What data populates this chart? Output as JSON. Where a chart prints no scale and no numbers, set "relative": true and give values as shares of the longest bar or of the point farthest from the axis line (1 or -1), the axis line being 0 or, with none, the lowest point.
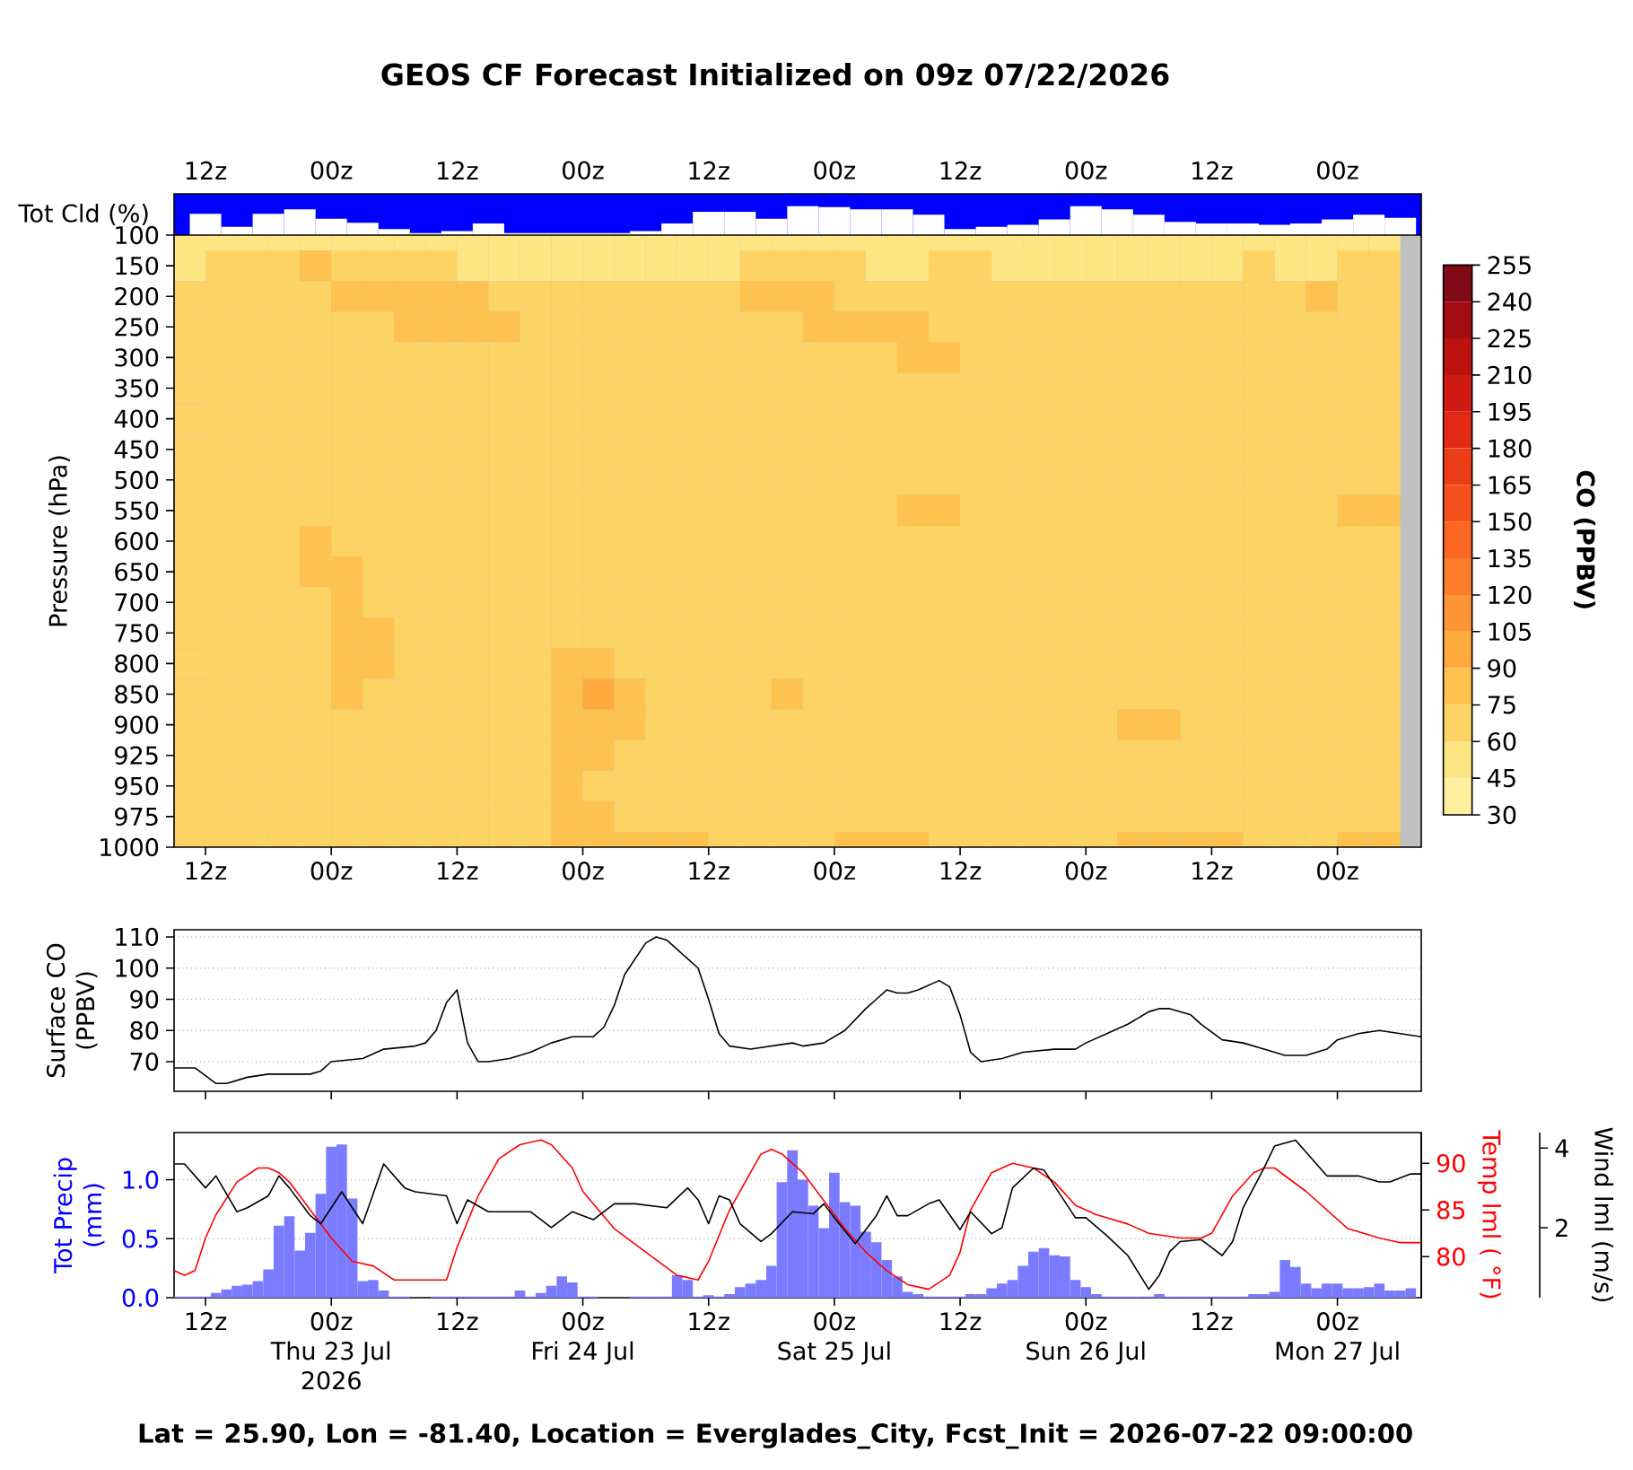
{
  "chart_data": [
    {
      "type": "bar",
      "title": "GEOS CF Forecast Initialized on 09z 07/22/2026",
      "ylabel": "Tot Cld (%)",
      "relative": true,
      "x": [
        "2026-07-22T09:00",
        "2026-07-22T12:00",
        "2026-07-22T15:00",
        "2026-07-22T18:00",
        "2026-07-22T21:00",
        "2026-07-23T00:00",
        "2026-07-23T03:00",
        "2026-07-23T06:00",
        "2026-07-23T09:00",
        "2026-07-23T12:00",
        "2026-07-23T15:00",
        "2026-07-23T18:00",
        "2026-07-23T21:00",
        "2026-07-24T00:00",
        "2026-07-24T03:00",
        "2026-07-24T06:00",
        "2026-07-24T09:00",
        "2026-07-24T12:00",
        "2026-07-24T15:00",
        "2026-07-24T18:00",
        "2026-07-24T21:00",
        "2026-07-25T00:00",
        "2026-07-25T03:00",
        "2026-07-25T06:00",
        "2026-07-25T09:00",
        "2026-07-25T12:00",
        "2026-07-25T15:00",
        "2026-07-25T18:00",
        "2026-07-25T21:00",
        "2026-07-26T00:00",
        "2026-07-26T03:00",
        "2026-07-26T06:00",
        "2026-07-26T09:00",
        "2026-07-26T12:00",
        "2026-07-26T15:00",
        "2026-07-26T18:00",
        "2026-07-26T21:00",
        "2026-07-27T00:00",
        "2026-07-27T03:00",
        "2026-07-27T06:00"
      ],
      "values": [
        0,
        0.74,
        0.29,
        0.74,
        0.89,
        0.57,
        0.43,
        0.21,
        0.07,
        0.14,
        0.4,
        0.07,
        0.07,
        0.07,
        0.07,
        0.14,
        0.4,
        0.81,
        0.81,
        0.57,
        1,
        0.97,
        0.89,
        0.89,
        0.71,
        0.21,
        0.29,
        0.36,
        0.54,
        1,
        0.89,
        0.71,
        0.46,
        0.4,
        0.4,
        0.36,
        0.4,
        0.54,
        0.71,
        0.6
      ],
      "color": "#ffffff",
      "xlim": [
        "2026-07-22T09:00",
        "2026-07-27T08:00"
      ],
      "xticks": [
        {
          "value": "2026-07-22T12:00",
          "label": "12z"
        },
        {
          "value": "2026-07-23T00:00",
          "label": "00z"
        },
        {
          "value": "2026-07-23T12:00",
          "label": "12z"
        },
        {
          "value": "2026-07-24T00:00",
          "label": "00z"
        },
        {
          "value": "2026-07-24T12:00",
          "label": "12z"
        },
        {
          "value": "2026-07-25T00:00",
          "label": "00z"
        },
        {
          "value": "2026-07-25T12:00",
          "label": "12z"
        },
        {
          "value": "2026-07-26T00:00",
          "label": "00z"
        },
        {
          "value": "2026-07-26T12:00",
          "label": "12z"
        },
        {
          "value": "2026-07-27T00:00",
          "label": "00z"
        }
      ]
    },
    {
      "type": "heatmap",
      "ylabel": "Pressure (hPa)",
      "clabel": "CO (PPBV)",
      "x": [
        "2026-07-22T10:30",
        "2026-07-22T13:30",
        "2026-07-22T16:30",
        "2026-07-22T19:30",
        "2026-07-22T22:30",
        "2026-07-23T01:30",
        "2026-07-23T04:30",
        "2026-07-23T07:30",
        "2026-07-23T10:30",
        "2026-07-23T13:30",
        "2026-07-23T16:30",
        "2026-07-23T19:30",
        "2026-07-23T22:30",
        "2026-07-24T01:30",
        "2026-07-24T04:30",
        "2026-07-24T07:30",
        "2026-07-24T10:30",
        "2026-07-24T13:30",
        "2026-07-24T16:30",
        "2026-07-24T19:30",
        "2026-07-24T22:30",
        "2026-07-25T01:30",
        "2026-07-25T04:30",
        "2026-07-25T07:30",
        "2026-07-25T10:30",
        "2026-07-25T13:30",
        "2026-07-25T16:30",
        "2026-07-25T19:30",
        "2026-07-25T22:30",
        "2026-07-26T01:30",
        "2026-07-26T04:30",
        "2026-07-26T07:30",
        "2026-07-26T10:30",
        "2026-07-26T13:30",
        "2026-07-26T16:30",
        "2026-07-26T19:30",
        "2026-07-26T22:30",
        "2026-07-27T01:30",
        "2026-07-27T04:30"
      ],
      "y_categories": [
        "100",
        "150",
        "200",
        "250",
        "300",
        "350",
        "400",
        "450",
        "500",
        "550",
        "600",
        "650",
        "700",
        "750",
        "800",
        "850",
        "900",
        "925",
        "950",
        "975",
        "1000"
      ],
      "cells": [
        [
          52,
          52,
          52,
          52,
          52,
          52,
          52,
          52,
          52,
          52,
          52,
          52,
          52,
          52,
          52,
          52,
          52,
          52,
          52,
          52,
          52,
          52,
          52,
          52,
          52,
          52,
          52,
          52,
          52,
          52,
          52,
          52,
          52,
          52,
          52,
          52,
          52,
          52,
          52
        ],
        [
          52,
          67,
          67,
          67,
          82,
          67,
          67,
          67,
          67,
          52,
          52,
          52,
          52,
          52,
          52,
          52,
          52,
          52,
          67,
          67,
          67,
          67,
          52,
          52,
          67,
          67,
          52,
          52,
          52,
          52,
          52,
          52,
          52,
          52,
          67,
          52,
          52,
          67,
          67
        ],
        [
          67,
          67,
          67,
          67,
          67,
          82,
          82,
          82,
          82,
          82,
          67,
          67,
          67,
          67,
          67,
          67,
          67,
          67,
          82,
          82,
          82,
          67,
          67,
          67,
          67,
          67,
          67,
          67,
          67,
          67,
          67,
          67,
          67,
          67,
          67,
          67,
          82,
          67,
          67
        ],
        [
          67,
          67,
          67,
          67,
          67,
          67,
          67,
          82,
          82,
          82,
          82,
          67,
          67,
          67,
          67,
          67,
          67,
          67,
          67,
          67,
          82,
          82,
          82,
          82,
          67,
          67,
          67,
          67,
          67,
          67,
          67,
          67,
          67,
          67,
          67,
          67,
          67,
          67,
          67
        ],
        [
          67,
          67,
          67,
          67,
          67,
          67,
          67,
          67,
          67,
          67,
          67,
          67,
          67,
          67,
          67,
          67,
          67,
          67,
          67,
          67,
          67,
          67,
          67,
          82,
          82,
          67,
          67,
          67,
          67,
          67,
          67,
          67,
          67,
          67,
          67,
          67,
          67,
          67,
          67
        ],
        [
          67,
          67,
          67,
          67,
          67,
          67,
          67,
          67,
          67,
          67,
          67,
          67,
          67,
          67,
          67,
          67,
          67,
          67,
          67,
          67,
          67,
          67,
          67,
          67,
          67,
          67,
          67,
          67,
          67,
          67,
          67,
          67,
          67,
          67,
          67,
          67,
          67,
          67,
          67
        ],
        [
          67,
          67,
          67,
          67,
          67,
          67,
          67,
          67,
          67,
          67,
          67,
          67,
          67,
          67,
          67,
          67,
          67,
          67,
          67,
          67,
          67,
          67,
          67,
          67,
          67,
          67,
          67,
          67,
          67,
          67,
          67,
          67,
          67,
          67,
          67,
          67,
          67,
          67,
          67
        ],
        [
          67,
          67,
          67,
          67,
          67,
          67,
          67,
          67,
          67,
          67,
          67,
          67,
          67,
          67,
          67,
          67,
          67,
          67,
          67,
          67,
          67,
          67,
          67,
          67,
          67,
          67,
          67,
          67,
          67,
          67,
          67,
          67,
          67,
          67,
          67,
          67,
          67,
          67,
          67
        ],
        [
          67,
          67,
          67,
          67,
          67,
          67,
          67,
          67,
          67,
          67,
          67,
          67,
          67,
          67,
          67,
          67,
          67,
          67,
          67,
          67,
          67,
          67,
          67,
          67,
          67,
          67,
          67,
          67,
          67,
          67,
          67,
          67,
          67,
          67,
          67,
          67,
          67,
          67,
          67
        ],
        [
          67,
          67,
          67,
          67,
          67,
          67,
          67,
          67,
          67,
          67,
          67,
          67,
          67,
          67,
          67,
          67,
          67,
          67,
          67,
          67,
          67,
          67,
          67,
          82,
          82,
          67,
          67,
          67,
          67,
          67,
          67,
          67,
          67,
          67,
          67,
          67,
          67,
          82,
          82
        ],
        [
          67,
          67,
          67,
          67,
          82,
          67,
          67,
          67,
          67,
          67,
          67,
          67,
          67,
          67,
          67,
          67,
          67,
          67,
          67,
          67,
          67,
          67,
          67,
          67,
          67,
          67,
          67,
          67,
          67,
          67,
          67,
          67,
          67,
          67,
          67,
          67,
          67,
          67,
          67
        ],
        [
          67,
          67,
          67,
          67,
          82,
          82,
          67,
          67,
          67,
          67,
          67,
          67,
          67,
          67,
          67,
          67,
          67,
          67,
          67,
          67,
          67,
          67,
          67,
          67,
          67,
          67,
          67,
          67,
          67,
          67,
          67,
          67,
          67,
          67,
          67,
          67,
          67,
          67,
          67
        ],
        [
          67,
          67,
          67,
          67,
          67,
          82,
          67,
          67,
          67,
          67,
          67,
          67,
          67,
          67,
          67,
          67,
          67,
          67,
          67,
          67,
          67,
          67,
          67,
          67,
          67,
          67,
          67,
          67,
          67,
          67,
          67,
          67,
          67,
          67,
          67,
          67,
          67,
          67,
          67
        ],
        [
          67,
          67,
          67,
          67,
          67,
          82,
          82,
          67,
          67,
          67,
          67,
          67,
          67,
          67,
          67,
          67,
          67,
          67,
          67,
          67,
          67,
          67,
          67,
          67,
          67,
          67,
          67,
          67,
          67,
          67,
          67,
          67,
          67,
          67,
          67,
          67,
          67,
          67,
          67
        ],
        [
          67,
          67,
          67,
          67,
          67,
          82,
          82,
          67,
          67,
          67,
          67,
          67,
          82,
          82,
          67,
          67,
          67,
          67,
          67,
          67,
          67,
          67,
          67,
          67,
          67,
          67,
          67,
          67,
          67,
          67,
          67,
          67,
          67,
          67,
          67,
          67,
          67,
          67,
          67
        ],
        [
          67,
          67,
          67,
          67,
          67,
          82,
          67,
          67,
          67,
          67,
          67,
          67,
          82,
          97,
          82,
          67,
          67,
          67,
          67,
          82,
          67,
          67,
          67,
          67,
          67,
          67,
          67,
          67,
          67,
          67,
          67,
          67,
          67,
          67,
          67,
          67,
          67,
          67,
          67
        ],
        [
          67,
          67,
          67,
          67,
          67,
          67,
          67,
          67,
          67,
          67,
          67,
          67,
          82,
          82,
          82,
          67,
          67,
          67,
          67,
          67,
          67,
          67,
          67,
          67,
          67,
          67,
          67,
          67,
          67,
          67,
          82,
          82,
          67,
          67,
          67,
          67,
          67,
          67,
          67
        ],
        [
          67,
          67,
          67,
          67,
          67,
          67,
          67,
          67,
          67,
          67,
          67,
          67,
          82,
          82,
          67,
          67,
          67,
          67,
          67,
          67,
          67,
          67,
          67,
          67,
          67,
          67,
          67,
          67,
          67,
          67,
          67,
          67,
          67,
          67,
          67,
          67,
          67,
          67,
          67
        ],
        [
          67,
          67,
          67,
          67,
          67,
          67,
          67,
          67,
          67,
          67,
          67,
          67,
          82,
          67,
          67,
          67,
          67,
          67,
          67,
          67,
          67,
          67,
          67,
          67,
          67,
          67,
          67,
          67,
          67,
          67,
          67,
          67,
          67,
          67,
          67,
          67,
          67,
          67,
          67
        ],
        [
          67,
          67,
          67,
          67,
          67,
          67,
          67,
          67,
          67,
          67,
          67,
          67,
          82,
          82,
          67,
          67,
          67,
          67,
          67,
          67,
          67,
          67,
          67,
          67,
          67,
          67,
          67,
          67,
          67,
          67,
          67,
          67,
          67,
          67,
          67,
          67,
          67,
          67,
          67
        ],
        [
          67,
          67,
          67,
          67,
          67,
          67,
          67,
          67,
          67,
          67,
          67,
          67,
          82,
          82,
          82,
          82,
          82,
          67,
          67,
          67,
          67,
          82,
          82,
          82,
          67,
          67,
          67,
          67,
          67,
          67,
          82,
          82,
          82,
          82,
          67,
          67,
          67,
          82,
          82
        ]
      ],
      "clim": [
        30,
        255
      ],
      "cticks": [
        30,
        45,
        60,
        75,
        90,
        105,
        120,
        135,
        150,
        165,
        180,
        195,
        210,
        225,
        240,
        255
      ],
      "xlim": [
        "2026-07-22T09:00",
        "2026-07-27T08:00"
      ],
      "xticks": [
        {
          "value": "2026-07-22T12:00",
          "label": "12z"
        },
        {
          "value": "2026-07-23T00:00",
          "label": "00z"
        },
        {
          "value": "2026-07-23T12:00",
          "label": "12z"
        },
        {
          "value": "2026-07-24T00:00",
          "label": "00z"
        },
        {
          "value": "2026-07-24T12:00",
          "label": "12z"
        },
        {
          "value": "2026-07-25T00:00",
          "label": "00z"
        },
        {
          "value": "2026-07-25T12:00",
          "label": "12z"
        },
        {
          "value": "2026-07-26T00:00",
          "label": "00z"
        },
        {
          "value": "2026-07-26T12:00",
          "label": "12z"
        },
        {
          "value": "2026-07-27T00:00",
          "label": "00z"
        }
      ]
    },
    {
      "type": "line",
      "ylabel": "Surface CO\n(PPBV)",
      "x": [
        "2026-07-22T09:00",
        "2026-07-22T11:00",
        "2026-07-22T13:00",
        "2026-07-22T14:00",
        "2026-07-22T16:00",
        "2026-07-22T18:00",
        "2026-07-22T22:00",
        "2026-07-22T23:00",
        "2026-07-23T00:00",
        "2026-07-23T03:00",
        "2026-07-23T05:00",
        "2026-07-23T08:00",
        "2026-07-23T09:00",
        "2026-07-23T10:00",
        "2026-07-23T11:00",
        "2026-07-23T12:00",
        "2026-07-23T13:00",
        "2026-07-23T14:00",
        "2026-07-23T15:00",
        "2026-07-23T17:00",
        "2026-07-23T19:00",
        "2026-07-23T21:00",
        "2026-07-23T23:00",
        "2026-07-24T00:00",
        "2026-07-24T01:00",
        "2026-07-24T02:00",
        "2026-07-24T03:00",
        "2026-07-24T04:00",
        "2026-07-24T06:00",
        "2026-07-24T07:00",
        "2026-07-24T08:00",
        "2026-07-24T09:00",
        "2026-07-24T11:00",
        "2026-07-24T12:00",
        "2026-07-24T13:00",
        "2026-07-24T14:00",
        "2026-07-24T16:00",
        "2026-07-24T18:00",
        "2026-07-24T20:00",
        "2026-07-24T21:00",
        "2026-07-24T23:00",
        "2026-07-25T01:00",
        "2026-07-25T03:00",
        "2026-07-25T04:00",
        "2026-07-25T05:00",
        "2026-07-25T06:00",
        "2026-07-25T07:00",
        "2026-07-25T08:00",
        "2026-07-25T10:00",
        "2026-07-25T11:00",
        "2026-07-25T12:00",
        "2026-07-25T13:00",
        "2026-07-25T14:00",
        "2026-07-25T16:00",
        "2026-07-25T18:00",
        "2026-07-25T21:00",
        "2026-07-25T23:00",
        "2026-07-26T00:00",
        "2026-07-26T02:00",
        "2026-07-26T04:00",
        "2026-07-26T06:00",
        "2026-07-26T07:00",
        "2026-07-26T08:00",
        "2026-07-26T10:00",
        "2026-07-26T11:00",
        "2026-07-26T13:00",
        "2026-07-26T15:00",
        "2026-07-26T17:00",
        "2026-07-26T19:00",
        "2026-07-26T21:00",
        "2026-07-26T23:00",
        "2026-07-27T00:00",
        "2026-07-27T02:00",
        "2026-07-27T04:00",
        "2026-07-27T06:00",
        "2026-07-27T08:00"
      ],
      "values": [
        68,
        68,
        63,
        63,
        65,
        66,
        66,
        67,
        70,
        71,
        74,
        75,
        76,
        80,
        89,
        93,
        76,
        70,
        70,
        71,
        73,
        76,
        78,
        78,
        78,
        81,
        88,
        98,
        108,
        110,
        109,
        106,
        100,
        90,
        79,
        75,
        74,
        75,
        76,
        75,
        76,
        80,
        87,
        90,
        93,
        92,
        92,
        93,
        96,
        94,
        85,
        73,
        70,
        71,
        73,
        74,
        74,
        76,
        79,
        82,
        86,
        87,
        87,
        85,
        82,
        77,
        76,
        74,
        72,
        72,
        74,
        77,
        79,
        80,
        79,
        78
      ],
      "color": "#000000",
      "xlim": [
        "2026-07-22T09:00",
        "2026-07-27T08:00"
      ],
      "xticks": [
        {
          "value": "2026-07-22T12:00",
          "label": null
        },
        {
          "value": "2026-07-23T00:00",
          "label": null
        },
        {
          "value": "2026-07-23T12:00",
          "label": null
        },
        {
          "value": "2026-07-24T00:00",
          "label": null
        },
        {
          "value": "2026-07-24T12:00",
          "label": null
        },
        {
          "value": "2026-07-25T00:00",
          "label": null
        },
        {
          "value": "2026-07-25T12:00",
          "label": null
        },
        {
          "value": "2026-07-26T00:00",
          "label": null
        },
        {
          "value": "2026-07-26T12:00",
          "label": null
        },
        {
          "value": "2026-07-27T00:00",
          "label": null
        }
      ],
      "ylim": [
        60.5,
        112.3
      ],
      "yticks": [
        70,
        80,
        90,
        100,
        110
      ],
      "grid": "y",
      "tick_labels": "y"
    },
    {
      "type": "bar",
      "ylabel": "Tot Precip\n(mm)",
      "y2label": "Temp lml ( °F)",
      "y3label": "Wind lml (m/s)",
      "series": [
        {
          "type": "bar",
          "color": "#7b7bff",
          "x": [
            "2026-07-22T09:00",
            "2026-07-22T10:00",
            "2026-07-22T11:00",
            "2026-07-22T12:00",
            "2026-07-22T13:00",
            "2026-07-22T14:00",
            "2026-07-22T15:00",
            "2026-07-22T16:00",
            "2026-07-22T17:00",
            "2026-07-22T18:00",
            "2026-07-22T19:00",
            "2026-07-22T20:00",
            "2026-07-22T21:00",
            "2026-07-22T22:00",
            "2026-07-22T23:00",
            "2026-07-23T00:00",
            "2026-07-23T01:00",
            "2026-07-23T02:00",
            "2026-07-23T03:00",
            "2026-07-23T04:00",
            "2026-07-23T05:00",
            "2026-07-23T06:00",
            "2026-07-23T07:00",
            "2026-07-23T08:00",
            "2026-07-23T09:00",
            "2026-07-23T10:00",
            "2026-07-23T11:00",
            "2026-07-23T12:00",
            "2026-07-23T13:00",
            "2026-07-23T14:00",
            "2026-07-23T15:00",
            "2026-07-23T16:00",
            "2026-07-23T17:00",
            "2026-07-23T18:00",
            "2026-07-23T19:00",
            "2026-07-23T20:00",
            "2026-07-23T21:00",
            "2026-07-23T22:00",
            "2026-07-23T23:00",
            "2026-07-24T00:00",
            "2026-07-24T01:00",
            "2026-07-24T02:00",
            "2026-07-24T03:00",
            "2026-07-24T04:00",
            "2026-07-24T05:00",
            "2026-07-24T06:00",
            "2026-07-24T07:00",
            "2026-07-24T08:00",
            "2026-07-24T09:00",
            "2026-07-24T10:00",
            "2026-07-24T11:00",
            "2026-07-24T12:00",
            "2026-07-24T13:00",
            "2026-07-24T14:00",
            "2026-07-24T15:00",
            "2026-07-24T16:00",
            "2026-07-24T17:00",
            "2026-07-24T18:00",
            "2026-07-24T19:00",
            "2026-07-24T20:00",
            "2026-07-24T21:00",
            "2026-07-24T22:00",
            "2026-07-24T23:00",
            "2026-07-25T00:00",
            "2026-07-25T01:00",
            "2026-07-25T02:00",
            "2026-07-25T03:00",
            "2026-07-25T04:00",
            "2026-07-25T05:00",
            "2026-07-25T06:00",
            "2026-07-25T07:00",
            "2026-07-25T08:00",
            "2026-07-25T09:00",
            "2026-07-25T10:00",
            "2026-07-25T11:00",
            "2026-07-25T12:00",
            "2026-07-25T13:00",
            "2026-07-25T14:00",
            "2026-07-25T15:00",
            "2026-07-25T16:00",
            "2026-07-25T17:00",
            "2026-07-25T18:00",
            "2026-07-25T19:00",
            "2026-07-25T20:00",
            "2026-07-25T21:00",
            "2026-07-25T22:00",
            "2026-07-25T23:00",
            "2026-07-26T00:00",
            "2026-07-26T01:00",
            "2026-07-26T02:00",
            "2026-07-26T03:00",
            "2026-07-26T04:00",
            "2026-07-26T05:00",
            "2026-07-26T06:00",
            "2026-07-26T07:00",
            "2026-07-26T08:00",
            "2026-07-26T09:00",
            "2026-07-26T10:00",
            "2026-07-26T11:00",
            "2026-07-26T12:00",
            "2026-07-26T13:00",
            "2026-07-26T14:00",
            "2026-07-26T15:00",
            "2026-07-26T16:00",
            "2026-07-26T17:00",
            "2026-07-26T18:00",
            "2026-07-26T19:00",
            "2026-07-26T20:00",
            "2026-07-26T21:00",
            "2026-07-26T22:00",
            "2026-07-26T23:00",
            "2026-07-27T00:00",
            "2026-07-27T01:00",
            "2026-07-27T02:00",
            "2026-07-27T03:00",
            "2026-07-27T04:00",
            "2026-07-27T05:00",
            "2026-07-27T06:00",
            "2026-07-27T07:00"
          ],
          "values": [
            0.01,
            0.01,
            0.01,
            0.01,
            0.04,
            0.07,
            0.1,
            0.11,
            0.14,
            0.24,
            0.61,
            0.69,
            0.4,
            0.55,
            0.88,
            1.28,
            1.3,
            0.84,
            0.14,
            0.15,
            0.06,
            0.01,
            0.01,
            0,
            0,
            0.01,
            0.01,
            0.01,
            0.01,
            0.01,
            0.01,
            0.01,
            0.01,
            0.06,
            0.01,
            0.04,
            0.1,
            0.18,
            0.13,
            0.01,
            0.01,
            0,
            0,
            0,
            0.01,
            0.01,
            0.01,
            0.01,
            0.19,
            0.15,
            0.01,
            0.02,
            0.01,
            0.03,
            0.09,
            0.12,
            0.15,
            0.27,
            0.98,
            1.25,
            1.0,
            0.78,
            0.59,
            1.06,
            0.81,
            0.78,
            0.56,
            0.47,
            0.32,
            0.18,
            0.05,
            0.03,
            0.01,
            0.01,
            0.01,
            0.01,
            0.03,
            0.03,
            0.08,
            0.12,
            0.15,
            0.27,
            0.39,
            0.42,
            0.36,
            0.35,
            0.15,
            0.09,
            0.03,
            0.01,
            0.01,
            0.01,
            0.01,
            0.01,
            0.03,
            0.01,
            0.01,
            0.01,
            0.01,
            0.01,
            0.01,
            0.01,
            0.01,
            0.03,
            0.03,
            0.05,
            0.32,
            0.26,
            0.12,
            0.08,
            0.12,
            0.12,
            0.08,
            0.08,
            0.09,
            0.12,
            0.06,
            0.06,
            0.08
          ]
        },
        {
          "type": "line",
          "axis": "y2",
          "color": "#ff0000",
          "x": [
            "2026-07-22T09:00",
            "2026-07-22T10:00",
            "2026-07-22T11:00",
            "2026-07-22T12:00",
            "2026-07-22T13:00",
            "2026-07-22T15:00",
            "2026-07-22T17:00",
            "2026-07-22T18:00",
            "2026-07-22T19:00",
            "2026-07-22T20:00",
            "2026-07-22T22:00",
            "2026-07-23T00:00",
            "2026-07-23T02:00",
            "2026-07-23T04:00",
            "2026-07-23T06:00",
            "2026-07-23T08:00",
            "2026-07-23T10:00",
            "2026-07-23T11:00",
            "2026-07-23T12:00",
            "2026-07-23T14:00",
            "2026-07-23T16:00",
            "2026-07-23T18:00",
            "2026-07-23T20:00",
            "2026-07-23T21:00",
            "2026-07-23T23:00",
            "2026-07-24T00:00",
            "2026-07-24T03:00",
            "2026-07-24T06:00",
            "2026-07-24T09:00",
            "2026-07-24T11:00",
            "2026-07-24T12:00",
            "2026-07-24T14:00",
            "2026-07-24T16:00",
            "2026-07-24T17:00",
            "2026-07-24T18:00",
            "2026-07-24T19:00",
            "2026-07-24T21:00",
            "2026-07-24T23:00",
            "2026-07-25T01:00",
            "2026-07-25T03:00",
            "2026-07-25T05:00",
            "2026-07-25T07:00",
            "2026-07-25T09:00",
            "2026-07-25T11:00",
            "2026-07-25T12:00",
            "2026-07-25T13:00",
            "2026-07-25T15:00",
            "2026-07-25T17:00",
            "2026-07-25T19:00",
            "2026-07-25T21:00",
            "2026-07-25T23:00",
            "2026-07-26T01:00",
            "2026-07-26T04:00",
            "2026-07-26T06:00",
            "2026-07-26T09:00",
            "2026-07-26T11:00",
            "2026-07-26T12:00",
            "2026-07-26T14:00",
            "2026-07-26T16:00",
            "2026-07-26T17:00",
            "2026-07-26T18:00",
            "2026-07-26T21:00",
            "2026-07-26T23:00",
            "2026-07-27T01:00",
            "2026-07-27T04:00",
            "2026-07-27T06:00",
            "2026-07-27T08:00"
          ],
          "values": [
            78.5,
            78,
            78.5,
            82,
            84.5,
            88,
            89.5,
            89.5,
            89,
            88,
            85,
            82,
            79.5,
            79,
            77.5,
            77.5,
            77.5,
            77.5,
            81,
            86.5,
            90.5,
            92,
            92.5,
            92,
            89.5,
            87,
            83,
            80.5,
            78,
            77.5,
            79.5,
            85,
            89,
            91,
            91.5,
            91,
            89,
            86,
            83,
            80.5,
            78.5,
            77,
            76.5,
            78,
            80.5,
            85,
            89,
            90,
            89.5,
            88,
            85.5,
            84.5,
            83.5,
            82.5,
            82,
            82,
            82.5,
            86.5,
            89,
            89.5,
            89.5,
            87,
            85,
            83,
            82,
            81.5,
            81.5
          ]
        },
        {
          "type": "line",
          "axis": "y3",
          "color": "#000000",
          "x": [
            "2026-07-22T09:00",
            "2026-07-22T10:00",
            "2026-07-22T12:00",
            "2026-07-22T13:00",
            "2026-07-22T15:00",
            "2026-07-22T16:00",
            "2026-07-22T18:00",
            "2026-07-22T19:00",
            "2026-07-22T20:00",
            "2026-07-22T22:00",
            "2026-07-22T23:00",
            "2026-07-23T01:00",
            "2026-07-23T03:00",
            "2026-07-23T05:00",
            "2026-07-23T07:00",
            "2026-07-23T08:00",
            "2026-07-23T11:00",
            "2026-07-23T12:00",
            "2026-07-23T13:00",
            "2026-07-23T15:00",
            "2026-07-23T18:00",
            "2026-07-23T19:00",
            "2026-07-23T21:00",
            "2026-07-23T23:00",
            "2026-07-24T01:00",
            "2026-07-24T03:00",
            "2026-07-24T05:00",
            "2026-07-24T08:00",
            "2026-07-24T10:00",
            "2026-07-24T11:00",
            "2026-07-24T12:00",
            "2026-07-24T13:00",
            "2026-07-24T14:00",
            "2026-07-24T15:00",
            "2026-07-24T17:00",
            "2026-07-24T18:00",
            "2026-07-24T20:00",
            "2026-07-24T22:00",
            "2026-07-24T23:00",
            "2026-07-25T00:00",
            "2026-07-25T02:00",
            "2026-07-25T04:00",
            "2026-07-25T05:00",
            "2026-07-25T06:00",
            "2026-07-25T07:00",
            "2026-07-25T09:00",
            "2026-07-25T10:00",
            "2026-07-25T12:00",
            "2026-07-25T13:00",
            "2026-07-25T15:00",
            "2026-07-25T16:00",
            "2026-07-25T17:00",
            "2026-07-25T19:00",
            "2026-07-25T20:00",
            "2026-07-25T21:00",
            "2026-07-25T23:00",
            "2026-07-26T00:00",
            "2026-07-26T02:00",
            "2026-07-26T04:00",
            "2026-07-26T06:00",
            "2026-07-26T07:00",
            "2026-07-26T08:00",
            "2026-07-26T09:00",
            "2026-07-26T11:00",
            "2026-07-26T12:00",
            "2026-07-26T13:00",
            "2026-07-26T14:00",
            "2026-07-26T15:00",
            "2026-07-26T17:00",
            "2026-07-26T18:00",
            "2026-07-26T20:00",
            "2026-07-26T21:00",
            "2026-07-26T23:00",
            "2026-07-27T02:00",
            "2026-07-27T04:00",
            "2026-07-27T05:00",
            "2026-07-27T07:00",
            "2026-07-27T08:00"
          ],
          "values": [
            3.6,
            3.6,
            3.0,
            3.3,
            2.4,
            2.5,
            2.8,
            3.3,
            3.0,
            2.3,
            2.1,
            2.9,
            2.1,
            3.6,
            3.0,
            2.9,
            2.8,
            2.1,
            2.7,
            2.4,
            2.4,
            2.4,
            2.0,
            2.4,
            2.2,
            2.6,
            2.6,
            2.5,
            3.0,
            2.7,
            2.1,
            2.8,
            2.7,
            2.1,
            1.65,
            1.85,
            2.4,
            2.35,
            2.6,
            2.25,
            1.6,
            2.3,
            2.8,
            2.3,
            2.3,
            2.6,
            2.7,
            1.95,
            2.4,
            1.85,
            2.0,
            3.0,
            3.5,
            3.45,
            3.05,
            2.25,
            2.25,
            1.8,
            1.3,
            0.45,
            0.8,
            1.4,
            1.65,
            1.7,
            1.5,
            1.3,
            1.65,
            2.5,
            3.5,
            4.05,
            4.2,
            3.9,
            3.3,
            3.3,
            3.15,
            3.15,
            3.35,
            3.35
          ]
        }
      ],
      "xlim": [
        "2026-07-22T09:00",
        "2026-07-27T08:00"
      ],
      "xticks": [
        {
          "value": "2026-07-22T12:00",
          "label": "12z"
        },
        {
          "value": "2026-07-23T00:00",
          "label": "00z\nThu 23 Jul\n2026"
        },
        {
          "value": "2026-07-23T12:00",
          "label": "12z"
        },
        {
          "value": "2026-07-24T00:00",
          "label": "00z\nFri 24 Jul"
        },
        {
          "value": "2026-07-24T12:00",
          "label": "12z"
        },
        {
          "value": "2026-07-25T00:00",
          "label": "00z\nSat 25 Jul"
        },
        {
          "value": "2026-07-25T12:00",
          "label": "12z"
        },
        {
          "value": "2026-07-26T00:00",
          "label": "00z\nSun 26 Jul"
        },
        {
          "value": "2026-07-26T12:00",
          "label": "12z"
        },
        {
          "value": "2026-07-27T00:00",
          "label": "00z\nMon 27 Jul"
        }
      ],
      "ylim": [
        0,
        1.4
      ],
      "yticks": [
        {
          "value": 0,
          "label": "0.0"
        },
        {
          "value": 0.5,
          "label": "0.5"
        },
        {
          "value": 1,
          "label": "1.0"
        }
      ],
      "y2lim": [
        75.6,
        93.3
      ],
      "y2ticks": [
        80,
        85,
        90
      ],
      "y3lim": [
        0.24,
        4.39
      ],
      "y3ticks": [
        2,
        4
      ],
      "grid": "y",
      "annotations": [
        "Lat = 25.90, Lon = -81.40, Location = Everglades_City, Fcst_Init = 2026-07-22 09:00:00"
      ]
    }
  ]
}
